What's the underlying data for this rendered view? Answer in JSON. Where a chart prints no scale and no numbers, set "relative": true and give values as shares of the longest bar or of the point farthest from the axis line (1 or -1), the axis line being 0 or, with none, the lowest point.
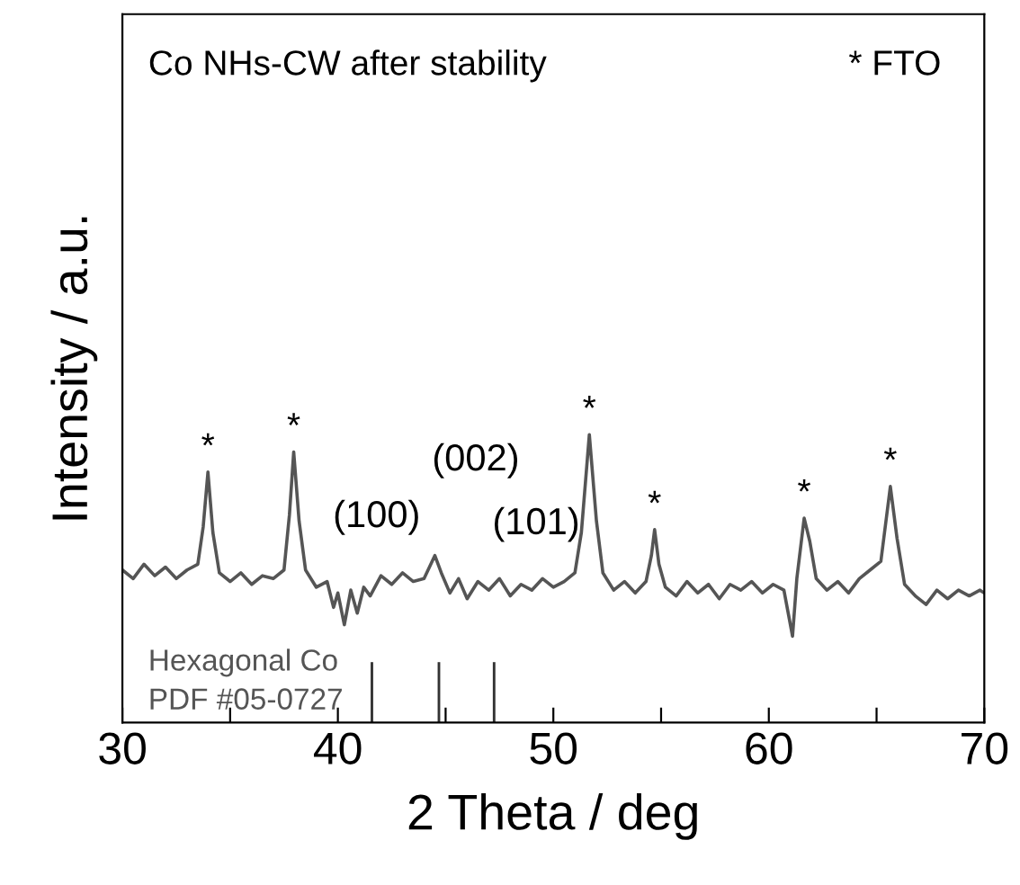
{
  "chart_data": {
    "type": "line",
    "relative": true,
    "xlabel": "2 Theta / deg",
    "ylabel": "Intensity / a.u.",
    "xlim": [
      30,
      70
    ],
    "xticks": [
      30,
      {
        "value": 35,
        "label": null
      },
      40,
      {
        "value": 45,
        "label": null
      },
      50,
      {
        "value": 55,
        "label": null
      },
      60,
      {
        "value": 65,
        "label": null
      },
      70
    ],
    "grid": false,
    "marker": "none",
    "line_style": "solid",
    "series": [
      {
        "color": "#555555",
        "x": [
          30.0,
          30.5,
          31.0,
          31.5,
          32.0,
          32.5,
          33.0,
          33.5,
          33.75,
          33.97,
          34.2,
          34.5,
          35.0,
          35.5,
          36.0,
          36.5,
          37.0,
          37.5,
          37.75,
          37.95,
          38.2,
          38.5,
          39.0,
          39.5,
          39.8,
          40.0,
          40.3,
          40.6,
          40.9,
          41.2,
          41.5,
          42.0,
          42.5,
          43.0,
          43.5,
          44.0,
          44.5,
          44.8,
          45.2,
          45.6,
          46.0,
          46.5,
          47.0,
          47.5,
          48.0,
          48.5,
          49.0,
          49.5,
          50.0,
          50.5,
          51.0,
          51.3,
          51.67,
          52.0,
          52.3,
          52.8,
          53.3,
          53.8,
          54.3,
          54.55,
          54.7,
          54.9,
          55.2,
          55.7,
          56.2,
          56.7,
          57.2,
          57.7,
          58.2,
          58.7,
          59.2,
          59.7,
          60.2,
          60.7,
          61.1,
          61.3,
          61.64,
          61.9,
          62.2,
          62.7,
          63.2,
          63.7,
          64.2,
          64.7,
          65.2,
          65.64,
          65.95,
          66.3,
          66.8,
          67.3,
          67.8,
          68.3,
          68.8,
          69.3,
          69.8,
          70.0
        ],
        "values": [
          0.53,
          0.5,
          0.55,
          0.51,
          0.54,
          0.5,
          0.53,
          0.55,
          0.68,
          0.87,
          0.66,
          0.52,
          0.49,
          0.52,
          0.48,
          0.51,
          0.5,
          0.53,
          0.72,
          0.94,
          0.7,
          0.53,
          0.47,
          0.49,
          0.4,
          0.45,
          0.34,
          0.46,
          0.38,
          0.47,
          0.44,
          0.51,
          0.48,
          0.52,
          0.49,
          0.5,
          0.58,
          0.52,
          0.45,
          0.5,
          0.43,
          0.49,
          0.46,
          0.5,
          0.44,
          0.48,
          0.46,
          0.5,
          0.47,
          0.49,
          0.52,
          0.66,
          1.0,
          0.7,
          0.52,
          0.46,
          0.49,
          0.45,
          0.49,
          0.58,
          0.67,
          0.55,
          0.47,
          0.44,
          0.49,
          0.45,
          0.48,
          0.43,
          0.48,
          0.46,
          0.49,
          0.45,
          0.48,
          0.46,
          0.3,
          0.5,
          0.71,
          0.63,
          0.5,
          0.46,
          0.49,
          0.45,
          0.5,
          0.53,
          0.56,
          0.82,
          0.64,
          0.48,
          0.44,
          0.41,
          0.46,
          0.43,
          0.46,
          0.44,
          0.46,
          0.45
        ]
      },
      {
        "type": "bar",
        "color": "#333333",
        "x": [
          41.58,
          44.69,
          47.25
        ],
        "values": [
          0.21,
          0.21,
          0.21
        ]
      }
    ],
    "annotations": [
      "Co NHs-CW after stability",
      "* FTO",
      "Hexagonal Co\nPDF #05-0727",
      {
        "text": "*",
        "x": 33.97,
        "y": 0.87
      },
      {
        "text": "*",
        "x": 37.95,
        "y": 0.94
      },
      {
        "text": "*",
        "x": 51.67,
        "y": 1.0
      },
      {
        "text": "*",
        "x": 54.7,
        "y": 0.67
      },
      {
        "text": "*",
        "x": 61.64,
        "y": 0.71
      },
      {
        "text": "*",
        "x": 65.64,
        "y": 0.82
      },
      "(100)",
      "(002)",
      "(101)"
    ]
  }
}
